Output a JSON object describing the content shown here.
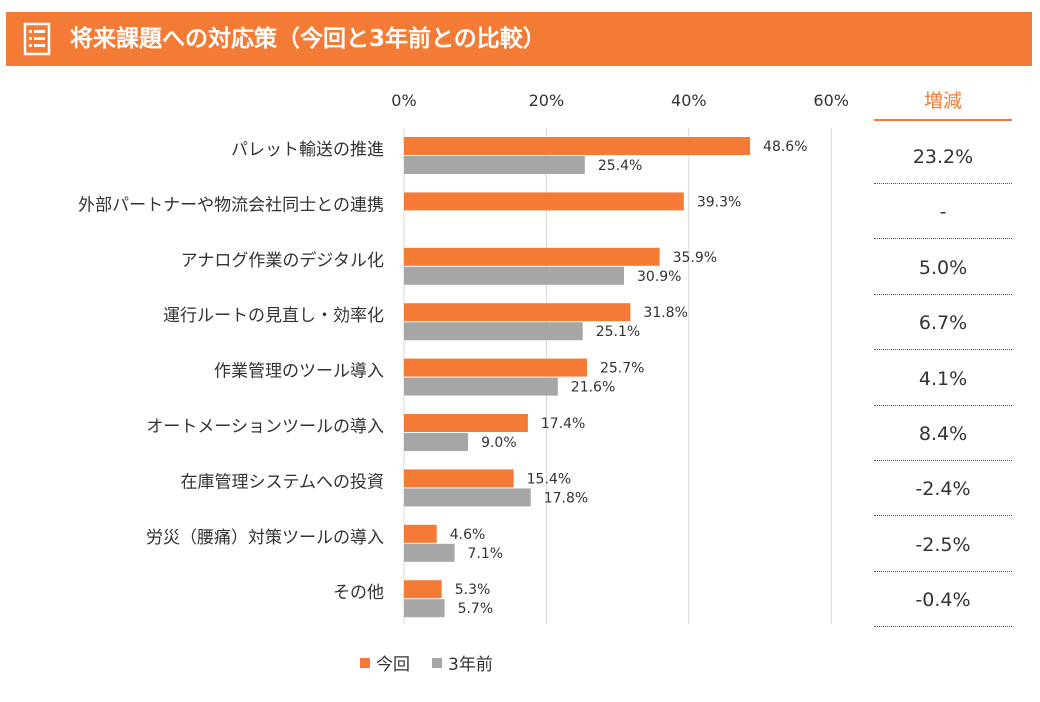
{
  "header": {
    "title": "将来課題への対応策（今回と3年前との比較）",
    "bg_color": "#f47b35",
    "icon": "list-document-icon"
  },
  "colors": {
    "current": "#f47b35",
    "previous": "#a6a6a6",
    "grid": "#d9d9d9"
  },
  "diff_column": {
    "header": "増減",
    "values": [
      "23.2%",
      "-",
      "5.0%",
      "6.7%",
      "4.1%",
      "8.4%",
      "-2.4%",
      "-2.5%",
      "-0.4%"
    ]
  },
  "legend": [
    {
      "label": "今回",
      "color": "#f47b35"
    },
    {
      "label": "3年前",
      "color": "#a6a6a6"
    }
  ],
  "chart_data": {
    "type": "bar",
    "orientation": "horizontal",
    "categories": [
      "パレット輸送の推進",
      "外部パートナーや物流会社同士との連携",
      "アナログ作業のデジタル化",
      "運行ルートの見直し・効率化",
      "作業管理のツール導入",
      "オートメーションツールの導入",
      "在庫管理システムへの投資",
      "労災（腰痛）対策ツールの導入",
      "その他"
    ],
    "series": [
      {
        "name": "今回",
        "values": [
          48.6,
          39.3,
          35.9,
          31.8,
          25.7,
          17.4,
          15.4,
          4.6,
          5.3
        ],
        "labels": [
          "48.6%",
          "39.3%",
          "35.9%",
          "31.8%",
          "25.7%",
          "17.4%",
          "15.4%",
          "4.6%",
          "5.3%"
        ]
      },
      {
        "name": "3年前",
        "values": [
          25.4,
          null,
          30.9,
          25.1,
          21.6,
          9.0,
          17.8,
          7.1,
          5.7
        ],
        "labels": [
          "25.4%",
          "",
          "30.9%",
          "25.1%",
          "21.6%",
          "9.0%",
          "17.8%",
          "7.1%",
          "5.7%"
        ]
      }
    ],
    "xticks": [
      0,
      20,
      40,
      60
    ],
    "xtick_labels": [
      "0%",
      "20%",
      "40%",
      "60%"
    ],
    "xlim": [
      0,
      60
    ],
    "grid": true,
    "legend_position": "bottom"
  }
}
